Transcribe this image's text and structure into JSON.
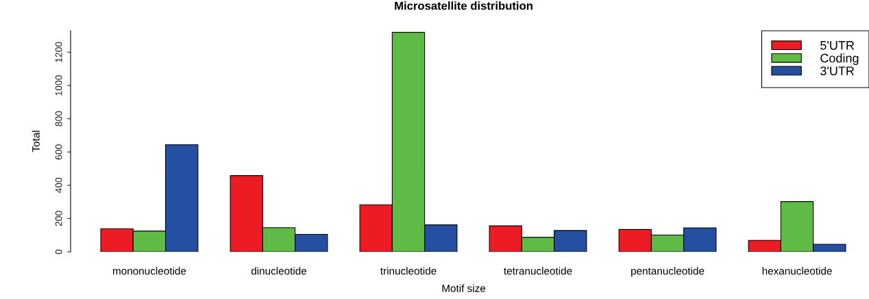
{
  "chart_data": {
    "type": "bar",
    "title": "Microsatellite distribution",
    "xlabel": "Motif size",
    "ylabel": "Total",
    "categories": [
      "mononucleotide",
      "dinucleotide",
      "trinucleotide",
      "tetranucleotide",
      "pentanucleotide",
      "hexanucleotide"
    ],
    "series": [
      {
        "name": "5'UTR",
        "color": "#ed1c24",
        "values": [
          139,
          458,
          283,
          156,
          134,
          69
        ]
      },
      {
        "name": "Coding",
        "color": "#5fba46",
        "values": [
          125,
          145,
          1319,
          87,
          101,
          302
        ]
      },
      {
        "name": "3'UTR",
        "color": "#2550a2",
        "values": [
          644,
          105,
          162,
          128,
          144,
          45
        ]
      }
    ],
    "ylim": [
      0,
      1330
    ],
    "yticks": [
      0,
      200,
      400,
      600,
      800,
      1000,
      1200
    ],
    "grid": false,
    "legend": "top right"
  }
}
